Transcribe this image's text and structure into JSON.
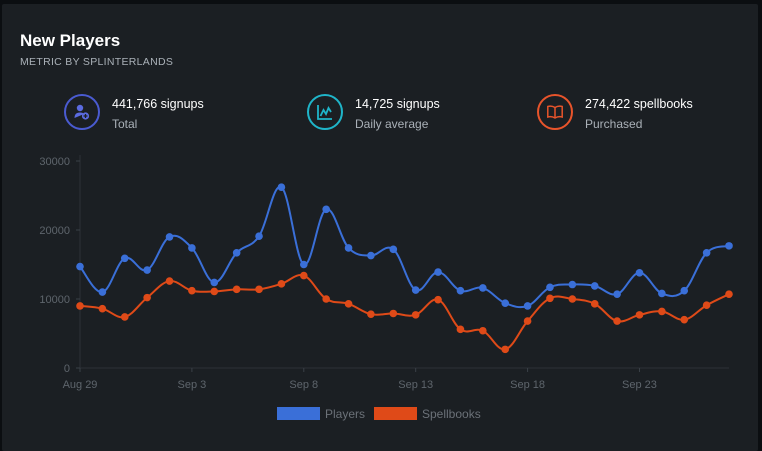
{
  "header": {
    "title": "New Players",
    "subtitle": "METRIC BY SPLINTERLANDS"
  },
  "stats": [
    {
      "value": "441,766 signups",
      "label": "Total",
      "icon": "user-plus-icon",
      "color": "#4a5bd1"
    },
    {
      "value": "14,725 signups",
      "label": "Daily average",
      "icon": "chart-line-icon",
      "color": "#1fb5c9"
    },
    {
      "value": "274,422 spellbooks",
      "label": "Purchased",
      "icon": "book-open-icon",
      "color": "#e8542b"
    }
  ],
  "chart_data": {
    "type": "line",
    "x": [
      "Aug 29",
      "Aug 30",
      "Aug 31",
      "Sep 1",
      "Sep 2",
      "Sep 3",
      "Sep 4",
      "Sep 5",
      "Sep 6",
      "Sep 7",
      "Sep 8",
      "Sep 9",
      "Sep 10",
      "Sep 11",
      "Sep 12",
      "Sep 13",
      "Sep 14",
      "Sep 15",
      "Sep 16",
      "Sep 17",
      "Sep 18",
      "Sep 19",
      "Sep 20",
      "Sep 21",
      "Sep 22",
      "Sep 23",
      "Sep 24",
      "Sep 25",
      "Sep 26",
      "Sep 27"
    ],
    "xticks": [
      "Aug 29",
      "Sep 3",
      "Sep 8",
      "Sep 13",
      "Sep 18",
      "Sep 23"
    ],
    "yticks": [
      0,
      10000,
      20000,
      30000
    ],
    "ylim": [
      0,
      30000
    ],
    "grid": false,
    "legend_position": "bottom",
    "series": [
      {
        "name": "Players",
        "color": "#3a6fd8",
        "values": [
          14700,
          11000,
          15900,
          14200,
          19000,
          17400,
          12400,
          16700,
          19100,
          26200,
          15000,
          23000,
          17400,
          16300,
          17200,
          11300,
          13900,
          11200,
          11600,
          9400,
          9000,
          11700,
          12100,
          11900,
          10700,
          13800,
          10800,
          11200,
          16700,
          17700
        ]
      },
      {
        "name": "Spellbooks",
        "color": "#df4a18",
        "values": [
          9000,
          8600,
          7400,
          10200,
          12600,
          11200,
          11100,
          11400,
          11400,
          12200,
          13400,
          10000,
          9300,
          7800,
          7900,
          7700,
          9900,
          5600,
          5400,
          2700,
          6800,
          10100,
          10000,
          9300,
          6800,
          7700,
          8200,
          7000,
          9100,
          10700
        ]
      }
    ]
  }
}
